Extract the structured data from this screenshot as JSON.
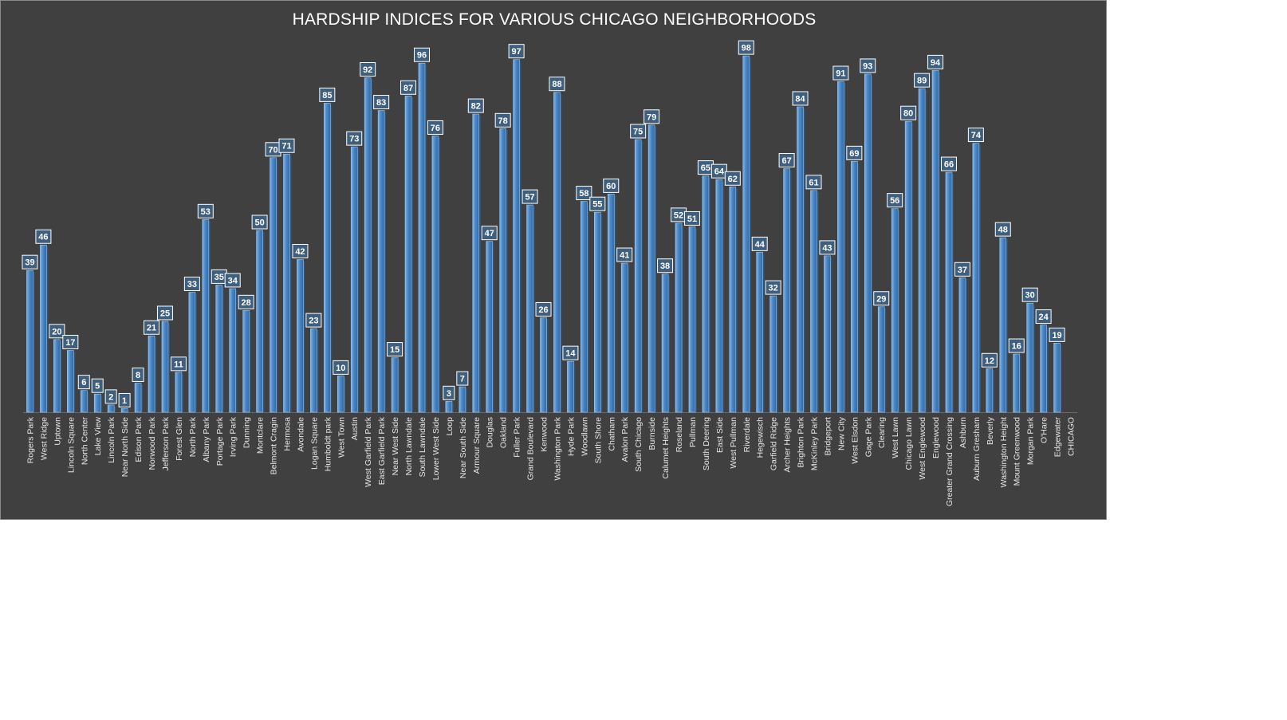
{
  "chart_data": {
    "type": "bar",
    "title": "HARDSHIP INDICES FOR VARIOUS CHICAGO NEIGHBORHOODS",
    "xlabel": "",
    "ylabel": "",
    "ylim": [
      0,
      100
    ],
    "grid": false,
    "legend": "none",
    "categories": [
      "Rogers Park",
      "West Ridge",
      "Uptown",
      "Lincoln Square",
      "North Center",
      "Lake View",
      "Lincoln Park",
      "Near North Side",
      "Edison Park",
      "Norwood Park",
      "Jefferson Park",
      "Forest Glen",
      "North Park",
      "Albany Park",
      "Portage Park",
      "Irving Park",
      "Dunning",
      "Montclare",
      "Belmont Cragin",
      "Hermosa",
      "Avondale",
      "Logan Square",
      "Humboldt park",
      "West Town",
      "Austin",
      "West Garfield Park",
      "East Garfield Park",
      "Near West Side",
      "North Lawndale",
      "South Lawndale",
      "Lower West Side",
      "Loop",
      "Near South Side",
      "Armour Square",
      "Douglas",
      "Oakland",
      "Fuller Park",
      "Grand Boulevard",
      "Kenwood",
      "Washington Park",
      "Hyde Park",
      "Woodlawn",
      "South Shore",
      "Chatham",
      "Avalon Park",
      "South Chicago",
      "Burnside",
      "Calumet Heights",
      "Roseland",
      "Pullman",
      "South Deering",
      "East Side",
      "West Pullman",
      "Riverdale",
      "Hegewisch",
      "Garfield Ridge",
      "Archer Heights",
      "Brighton Park",
      "McKinley Park",
      "Bridgeport",
      "New City",
      "West Elsdon",
      "Gage Park",
      "Clearing",
      "West Lawn",
      "Chicago Lawn",
      "West Englewood",
      "Englewood",
      "Greater Grand Crossing",
      "Ashburn",
      "Auburn Gresham",
      "Beverly",
      "Washington Height",
      "Mount Greenwood",
      "Morgan Park",
      "O'Hare",
      "Edgewater",
      "CHICAGO"
    ],
    "values": [
      39,
      46,
      20,
      17,
      6,
      5,
      2,
      1,
      8,
      21,
      25,
      11,
      33,
      53,
      35,
      34,
      28,
      50,
      70,
      71,
      42,
      23,
      85,
      10,
      73,
      92,
      83,
      15,
      87,
      96,
      76,
      3,
      7,
      82,
      47,
      78,
      97,
      57,
      26,
      88,
      14,
      58,
      55,
      60,
      41,
      75,
      79,
      38,
      52,
      51,
      65,
      64,
      62,
      98,
      44,
      32,
      67,
      84,
      61,
      43,
      91,
      69,
      93,
      29,
      56,
      80,
      89,
      94,
      66,
      37,
      74,
      12,
      48,
      16,
      30,
      24,
      19,
      null
    ],
    "colors": {
      "background": "#404040",
      "bar": "#4a86c5",
      "bar_highlight": "#82b4e4",
      "bar_shadow": "#2a5684",
      "label_box": "#3f5f7f",
      "label_border": "#ffffff",
      "text": "#ffffff"
    }
  }
}
